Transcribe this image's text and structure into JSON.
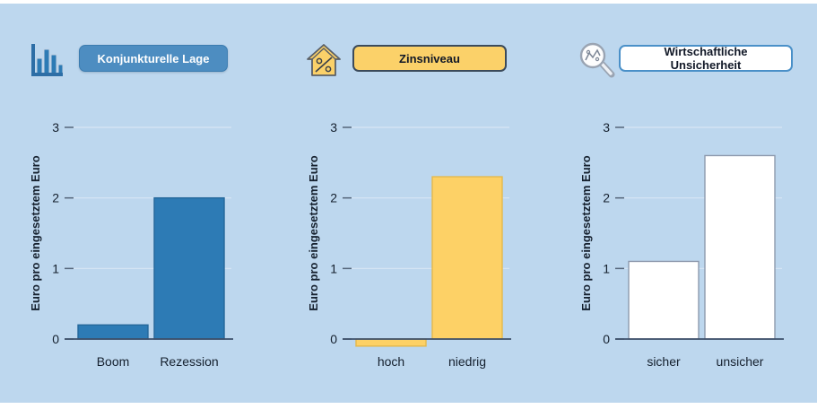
{
  "page": {
    "background_color": "#bdd7ee",
    "frame_color": "#ffffff"
  },
  "panels": [
    {
      "icon": "bar-chart-icon",
      "button": {
        "label": "Konjunkturelle Lage"
      }
    },
    {
      "icon": "house-percent-icon",
      "button": {
        "label": "Zinsniveau"
      }
    },
    {
      "icon": "magnifier-chart-icon",
      "button": {
        "label": "Wirtschaftliche Unsicherheit"
      }
    }
  ],
  "chart_data": [
    {
      "type": "bar",
      "title": "Konjunkturelle Lage",
      "categories": [
        "Boom",
        "Rezession"
      ],
      "values": [
        0.2,
        2.0
      ],
      "ylabel": "Euro pro eingesetztem Euro",
      "xlabel": "",
      "yticks": [
        0,
        1,
        2,
        3
      ],
      "ylim": [
        0,
        3
      ],
      "grid": true,
      "legend": false,
      "bar_color": "#2d7bb5",
      "bar_border": "#25689a"
    },
    {
      "type": "bar",
      "title": "Zinsniveau",
      "categories": [
        "hoch",
        "niedrig"
      ],
      "values": [
        -0.1,
        2.3
      ],
      "ylabel": "Euro pro eingesetztem Euro",
      "xlabel": "",
      "yticks": [
        0,
        1,
        2,
        3
      ],
      "ylim": [
        0,
        3
      ],
      "grid": true,
      "legend": false,
      "bar_color": "#fdd166",
      "bar_border": "#e4b84c"
    },
    {
      "type": "bar",
      "title": "Wirtschaftliche Unsicherheit",
      "categories": [
        "sicher",
        "unsicher"
      ],
      "values": [
        1.1,
        2.6
      ],
      "ylabel": "Euro pro eingesetztem Euro",
      "xlabel": "",
      "yticks": [
        0,
        1,
        2,
        3
      ],
      "ylim": [
        0,
        3
      ],
      "grid": true,
      "legend": false,
      "bar_color": "#ffffff",
      "bar_border": "#8d99ad"
    }
  ],
  "colors": {
    "axis_text": "#15202e",
    "gridline": "#d8e6f5",
    "tick": "#55657a",
    "baseline": "#3d4f69",
    "button_blue_bg": "#4d8dc1",
    "button_yellow_bg": "#fbd169",
    "button_white_border": "#4a90c8"
  }
}
